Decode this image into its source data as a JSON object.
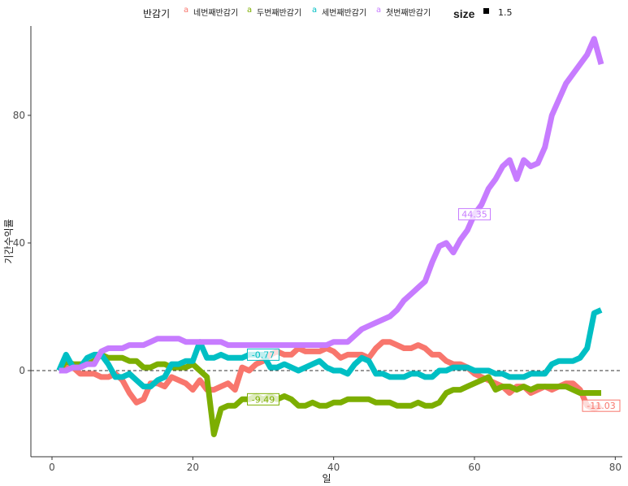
{
  "chart_data": {
    "type": "line",
    "title": "",
    "xlabel": "일",
    "ylabel": "기간수익률",
    "xlim": [
      -3,
      81
    ],
    "ylim": [
      -27,
      108
    ],
    "x_ticks": [
      0,
      20,
      40,
      60,
      80
    ],
    "y_ticks": [
      0,
      40,
      80
    ],
    "grid": false,
    "reference_line": {
      "y": 0,
      "style": "dashed"
    },
    "legend": {
      "position": "top",
      "title": "반감기",
      "size_title": "size",
      "size_value": "1.5",
      "key_glyph": "a"
    },
    "series": [
      {
        "name": "네번째반감기",
        "color": "#F8766D",
        "label": "-11.03",
        "label_x": 78,
        "x": [
          1,
          2,
          3,
          4,
          5,
          6,
          7,
          8,
          9,
          10,
          11,
          12,
          13,
          14,
          15,
          16,
          17,
          18,
          19,
          20,
          21,
          22,
          23,
          24,
          25,
          26,
          27,
          28,
          29,
          30,
          31,
          32,
          33,
          34,
          35,
          36,
          37,
          38,
          39,
          40,
          41,
          42,
          43,
          44,
          45,
          46,
          47,
          48,
          49,
          50,
          51,
          52,
          53,
          54,
          55,
          56,
          57,
          58,
          59,
          60,
          61,
          62,
          63,
          64,
          65,
          66,
          67,
          68,
          69,
          70,
          71,
          72,
          73,
          74,
          75,
          76,
          77,
          78
        ],
        "y": [
          0,
          1,
          1,
          -1,
          -1,
          -1,
          -2,
          -2,
          -1,
          -3,
          -7,
          -10,
          -9,
          -4,
          -4,
          -5,
          -2,
          -3,
          -4,
          -6,
          -3,
          -6,
          -6,
          -5,
          -4,
          -6,
          1,
          0,
          2,
          3,
          5,
          6,
          5,
          5,
          7,
          6,
          6,
          6,
          7,
          6,
          4,
          5,
          5,
          5,
          4,
          7,
          9,
          9,
          8,
          7,
          7,
          8,
          7,
          5,
          5,
          3,
          2,
          2,
          1,
          -1,
          -2,
          -3,
          -4,
          -5,
          -7,
          -5,
          -5,
          -7,
          -6,
          -5,
          -6,
          -5,
          -4,
          -4,
          -6,
          -11,
          -12,
          -11
        ]
      },
      {
        "name": "두번째반감기",
        "color": "#7CAE00",
        "label": "-9.49",
        "label_x": 30,
        "x": [
          1,
          2,
          3,
          4,
          5,
          6,
          7,
          8,
          9,
          10,
          11,
          12,
          13,
          14,
          15,
          16,
          17,
          18,
          19,
          20,
          21,
          22,
          23,
          24,
          25,
          26,
          27,
          28,
          29,
          30,
          31,
          32,
          33,
          34,
          35,
          36,
          37,
          38,
          39,
          40,
          41,
          42,
          43,
          44,
          45,
          46,
          47,
          48,
          49,
          50,
          51,
          52,
          53,
          54,
          55,
          56,
          57,
          58,
          59,
          60,
          61,
          62,
          63,
          64,
          65,
          66,
          67,
          68,
          69,
          70,
          71,
          72,
          73,
          74,
          75,
          76,
          77,
          78
        ],
        "y": [
          0,
          3,
          2,
          2,
          2,
          3,
          5,
          4,
          4,
          4,
          3,
          3,
          1,
          1,
          2,
          2,
          1,
          1,
          1,
          2,
          0,
          -2,
          -20,
          -12,
          -11,
          -11,
          -9,
          -9,
          -8,
          -9,
          -8,
          -9,
          -8,
          -9,
          -11,
          -11,
          -10,
          -11,
          -11,
          -10,
          -10,
          -9,
          -9,
          -9,
          -9,
          -10,
          -10,
          -10,
          -11,
          -11,
          -11,
          -10,
          -11,
          -11,
          -10,
          -7,
          -6,
          -6,
          -5,
          -4,
          -3,
          -2,
          -6,
          -5,
          -5,
          -6,
          -5,
          -6,
          -5,
          -5,
          -5,
          -5,
          -5,
          -6,
          -7,
          -7,
          -7,
          -7
        ]
      },
      {
        "name": "세번째반감기",
        "color": "#00BFC4",
        "label": "-0.77",
        "label_x": 30,
        "x": [
          1,
          2,
          3,
          4,
          5,
          6,
          7,
          8,
          9,
          10,
          11,
          12,
          13,
          14,
          15,
          16,
          17,
          18,
          19,
          20,
          21,
          22,
          23,
          24,
          25,
          26,
          27,
          28,
          29,
          30,
          31,
          32,
          33,
          34,
          35,
          36,
          37,
          38,
          39,
          40,
          41,
          42,
          43,
          44,
          45,
          46,
          47,
          48,
          49,
          50,
          51,
          52,
          53,
          54,
          55,
          56,
          57,
          58,
          59,
          60,
          61,
          62,
          63,
          64,
          65,
          66,
          67,
          68,
          69,
          70,
          71,
          72,
          73,
          74,
          75,
          76,
          77,
          78
        ],
        "y": [
          0,
          5,
          1,
          1,
          4,
          5,
          5,
          2,
          -2,
          -2,
          -1,
          -3,
          -5,
          -5,
          -3,
          -2,
          2,
          2,
          3,
          3,
          9,
          4,
          4,
          5,
          4,
          4,
          4,
          5,
          5,
          5,
          1,
          1,
          2,
          1,
          0,
          1,
          2,
          3,
          1,
          0,
          0,
          -1,
          2,
          4,
          3,
          -1,
          -1,
          -2,
          -2,
          -2,
          -1,
          -1,
          -2,
          -2,
          0,
          0,
          1,
          1,
          1,
          0,
          0,
          0,
          -1,
          -1,
          -2,
          -2,
          -2,
          -1,
          -1,
          -1,
          2,
          3,
          3,
          3,
          4,
          7,
          18,
          19
        ]
      },
      {
        "name": "첫번째반감기",
        "color": "#C77CFF",
        "label": "44.35",
        "label_x": 60,
        "x": [
          1,
          2,
          3,
          4,
          5,
          6,
          7,
          8,
          9,
          10,
          11,
          12,
          13,
          14,
          15,
          16,
          17,
          18,
          19,
          20,
          21,
          22,
          23,
          24,
          25,
          26,
          27,
          28,
          29,
          30,
          31,
          32,
          33,
          34,
          35,
          36,
          37,
          38,
          39,
          40,
          41,
          42,
          43,
          44,
          45,
          46,
          47,
          48,
          49,
          50,
          51,
          52,
          53,
          54,
          55,
          56,
          57,
          58,
          59,
          60,
          61,
          62,
          63,
          64,
          65,
          66,
          67,
          68,
          69,
          70,
          71,
          72,
          73,
          74,
          75,
          76,
          77,
          78
        ],
        "y": [
          0,
          0,
          1,
          1,
          2,
          2,
          6,
          7,
          7,
          7,
          8,
          8,
          8,
          9,
          10,
          10,
          10,
          10,
          9,
          9,
          9,
          9,
          9,
          9,
          8,
          8,
          8,
          8,
          8,
          8,
          8,
          8,
          8,
          8,
          8,
          8,
          8,
          8,
          8,
          9,
          9,
          9,
          11,
          13,
          14,
          15,
          16,
          17,
          19,
          22,
          24,
          26,
          28,
          34,
          39,
          40,
          37,
          41,
          44,
          49,
          52,
          57,
          60,
          64,
          66,
          60,
          66,
          64,
          65,
          70,
          80,
          85,
          90,
          93,
          96,
          99,
          104,
          96
        ]
      }
    ]
  }
}
